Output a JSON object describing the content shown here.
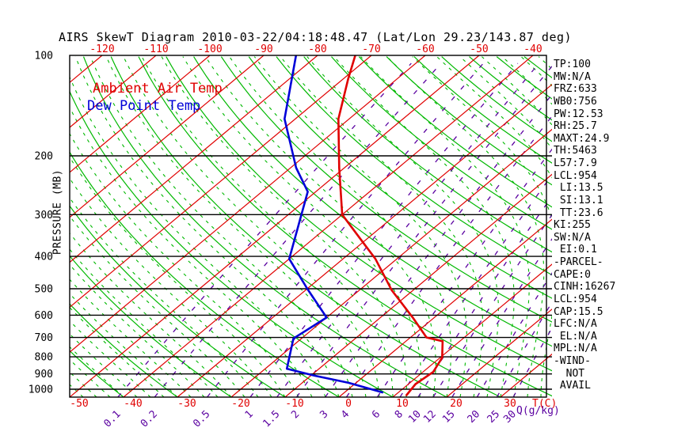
{
  "title": "AIRS SkewT Diagram 2010-03-22/04:18:48.47 (Lat/Lon 29.23/143.87 deg)",
  "legend": {
    "ambient": "Ambient Air Temp",
    "dewpoint": "Dew Point Temp"
  },
  "colors": {
    "isotherm_red": "#e00000",
    "adiabat_green": "#00b800",
    "mixing_purple": "#5a00a0",
    "temp_curve": "#e00000",
    "dew_curve": "#0000d8",
    "pressure_black": "#000000"
  },
  "axes": {
    "pressure_axis_title": "PRESSURE (MB)",
    "pressure_labels": [
      100,
      200,
      300,
      400,
      500,
      600,
      700,
      800,
      900,
      1000
    ],
    "top_temp_labels": [
      -120,
      -110,
      -100,
      -90,
      -80,
      -70,
      -60,
      -50,
      -40
    ],
    "bottom_temp_labels": [
      -50,
      -40,
      -30,
      -20,
      -10,
      0,
      10,
      20,
      30
    ],
    "temp_unit_label": "T(C)",
    "mixing_ratio_labels": [
      "0.1",
      "0.2",
      "0.5",
      "1",
      "1.5",
      "2",
      "3",
      "4",
      "6",
      "8",
      "10",
      "12",
      "15",
      "20",
      "25",
      "30"
    ],
    "mixing_ratio_unit": "Q(g/kg)"
  },
  "stats_panel": {
    "lines": [
      "TP:100",
      "MW:N/A",
      "FRZ:633",
      "WB0:756",
      "PW:12.53",
      "RH:25.7",
      "MAXT:24.9",
      "TH:5463",
      "L57:7.9",
      "LCL:954",
      " LI:13.5",
      " SI:13.1",
      " TT:23.6",
      "KI:255",
      "SW:N/A",
      " EI:0.1",
      "-PARCEL-",
      "CAPE:0",
      "CINH:16267",
      "LCL:954",
      "CAP:15.5",
      "LFC:N/A",
      " EL:N/A",
      "MPL:N/A",
      "-WIND-",
      "  NOT",
      " AVAIL"
    ]
  },
  "chart_data": {
    "type": "line",
    "title": "AIRS SkewT Diagram 2010-03-22/04:18:48.47 (Lat/Lon 29.23/143.87 deg)",
    "x_axis": {
      "label": "T(C)",
      "bottom_range": [
        -50,
        30
      ],
      "top_range": [
        -120,
        -40
      ],
      "skewed": true
    },
    "y_axis": {
      "label": "PRESSURE (MB)",
      "range": [
        100,
        1056
      ],
      "scale": "log",
      "inverted": true
    },
    "grid": {
      "isotherms_c_step": 10,
      "dry_adiabat_base_step_c": 10,
      "moist_adiabat_base_step_c": 2.5,
      "mixing_ratio_g_kg": [
        0.1,
        0.2,
        0.5,
        1,
        1.5,
        2,
        3,
        4,
        6,
        8,
        10,
        12,
        15,
        20,
        25,
        30
      ]
    },
    "series": [
      {
        "name": "Ambient Air Temp",
        "color": "#e00000",
        "points_p_mb_t_c": [
          [
            100,
            -73
          ],
          [
            118,
            -69
          ],
          [
            155,
            -62
          ],
          [
            217,
            -51
          ],
          [
            300,
            -40
          ],
          [
            370,
            -29
          ],
          [
            407,
            -24
          ],
          [
            505,
            -14
          ],
          [
            610,
            -4
          ],
          [
            700,
            3
          ],
          [
            718,
            6.8
          ],
          [
            805,
            10.4
          ],
          [
            888,
            11.9
          ],
          [
            965,
            11.3
          ],
          [
            1042,
            12.1
          ]
        ]
      },
      {
        "name": "Dew Point Temp",
        "color": "#0000d8",
        "points_p_mb_t_c": [
          [
            100,
            -84
          ],
          [
            155,
            -72
          ],
          [
            217,
            -59
          ],
          [
            256,
            -51.5
          ],
          [
            407,
            -40
          ],
          [
            500,
            -30
          ],
          [
            610,
            -20
          ],
          [
            705,
            -21.5
          ],
          [
            868,
            -16
          ],
          [
            911,
            -9.3
          ],
          [
            957,
            -1.4
          ],
          [
            1022,
            7
          ]
        ]
      }
    ]
  }
}
